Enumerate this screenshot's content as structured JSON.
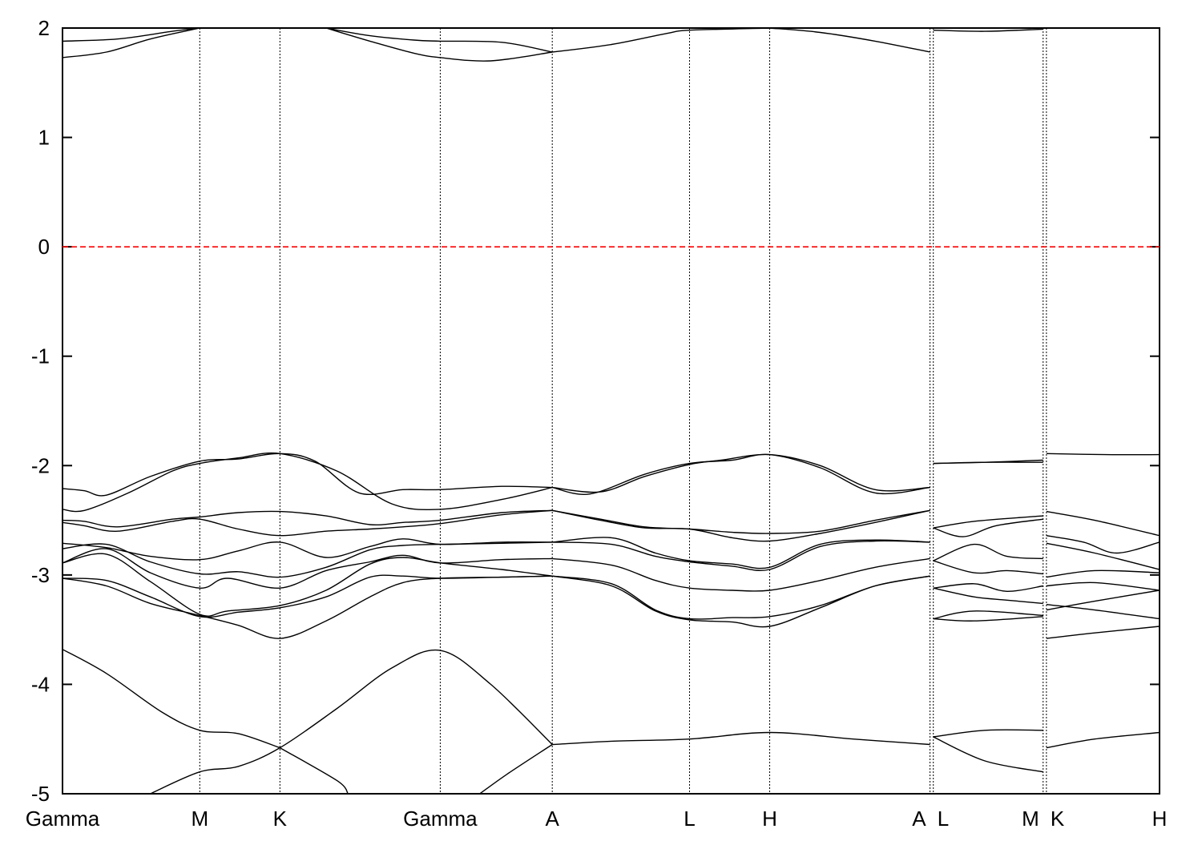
{
  "chart_data": {
    "type": "line",
    "title": "",
    "xlabel": "",
    "ylabel": "",
    "ylim": [
      -5,
      2
    ],
    "yticks": [
      2,
      1,
      0,
      -1,
      -2,
      -3,
      -4,
      -5
    ],
    "ytick_labels": [
      "2",
      "1",
      "0",
      "-1",
      "-2",
      "-3",
      "-4",
      "-5"
    ],
    "kpath": [
      {
        "label": "Gamma",
        "x": 0.0
      },
      {
        "label": "M",
        "x": 1.25
      },
      {
        "label": "K",
        "x": 1.98
      },
      {
        "label": "Gamma",
        "x": 3.44
      },
      {
        "label": "A",
        "x": 4.46
      },
      {
        "label": "L",
        "x": 5.71
      },
      {
        "label": "H",
        "x": 6.44
      },
      {
        "label": "A",
        "x": 7.9
      },
      {
        "label": "L",
        "x": 7.93
      },
      {
        "label": "M",
        "x": 8.93
      },
      {
        "label": "K",
        "x": 8.96
      },
      {
        "label": "H",
        "x": 9.99
      }
    ],
    "xlim": [
      0.0,
      9.99
    ],
    "fermi_level": {
      "y": 0,
      "color": "#ff0000"
    },
    "bands": [
      {
        "x": [
          0.0,
          0.5,
          1.0,
          1.25
        ],
        "y": [
          1.88,
          1.9,
          1.97,
          2.0
        ]
      },
      {
        "x": [
          0.0,
          0.4,
          0.8,
          1.25
        ],
        "y": [
          1.73,
          1.78,
          1.9,
          2.0
        ]
      },
      {
        "x": [
          2.4,
          2.8,
          3.2,
          3.44,
          4.0,
          4.46
        ],
        "y": [
          2.0,
          1.93,
          1.89,
          1.88,
          1.87,
          1.78
        ]
      },
      {
        "x": [
          2.4,
          2.8,
          3.2,
          3.44,
          3.9,
          4.46
        ],
        "y": [
          2.0,
          1.88,
          1.77,
          1.73,
          1.7,
          1.78
        ]
      },
      {
        "x": [
          4.46,
          5.0,
          5.5,
          5.71,
          6.44
        ],
        "y": [
          1.78,
          1.85,
          1.95,
          1.98,
          2.0
        ]
      },
      {
        "x": [
          6.44,
          6.9,
          7.4,
          7.9
        ],
        "y": [
          2.0,
          1.96,
          1.88,
          1.78
        ]
      },
      {
        "x": [
          7.93,
          8.4,
          8.93
        ],
        "y": [
          1.98,
          1.97,
          1.99
        ]
      },
      {
        "x": [
          0.0,
          0.2,
          0.4,
          0.8,
          1.25,
          1.6,
          1.98,
          2.3,
          2.7,
          3.1,
          3.44,
          4.0,
          4.46
        ],
        "y": [
          -2.21,
          -2.23,
          -2.27,
          -2.1,
          -1.96,
          -1.94,
          -1.89,
          -1.96,
          -2.25,
          -2.22,
          -2.22,
          -2.19,
          -2.2
        ]
      },
      {
        "x": [
          0.0,
          0.2,
          0.6,
          1.0,
          1.25,
          1.6,
          1.98,
          2.5,
          3.0,
          3.44,
          4.0,
          4.46
        ],
        "y": [
          -2.4,
          -2.41,
          -2.25,
          -2.05,
          -1.98,
          -1.93,
          -1.89,
          -2.05,
          -2.35,
          -2.4,
          -2.31,
          -2.2
        ]
      },
      {
        "x": [
          4.46,
          4.9,
          5.3,
          5.71,
          6.0,
          6.44,
          6.9,
          7.4,
          7.9
        ],
        "y": [
          -2.2,
          -2.24,
          -2.1,
          -1.99,
          -1.95,
          -1.9,
          -2.0,
          -2.22,
          -2.2
        ]
      },
      {
        "x": [
          4.46,
          4.8,
          5.3,
          5.71,
          6.1,
          6.44,
          6.9,
          7.4,
          7.9
        ],
        "y": [
          -2.2,
          -2.26,
          -2.08,
          -1.98,
          -1.95,
          -1.9,
          -2.02,
          -2.25,
          -2.2
        ]
      },
      {
        "x": [
          7.93,
          8.4,
          8.93
        ],
        "y": [
          -1.98,
          -1.97,
          -1.95
        ]
      },
      {
        "x": [
          7.93,
          8.4,
          8.93
        ],
        "y": [
          -1.98,
          -1.97,
          -1.97
        ]
      },
      {
        "x": [
          8.96,
          9.5,
          9.99
        ],
        "y": [
          -1.89,
          -1.9,
          -1.9
        ]
      },
      {
        "x": [
          0.0,
          0.2,
          0.5,
          1.0,
          1.25,
          1.6,
          1.98,
          2.4,
          2.8,
          3.1,
          3.44,
          4.0,
          4.46
        ],
        "y": [
          -2.5,
          -2.51,
          -2.56,
          -2.49,
          -2.47,
          -2.43,
          -2.42,
          -2.46,
          -2.54,
          -2.52,
          -2.5,
          -2.43,
          -2.41
        ]
      },
      {
        "x": [
          0.0,
          0.2,
          0.5,
          1.0,
          1.25,
          1.6,
          1.98,
          2.4,
          2.8,
          3.1,
          3.44,
          4.0,
          4.46
        ],
        "y": [
          -2.52,
          -2.55,
          -2.6,
          -2.51,
          -2.49,
          -2.58,
          -2.64,
          -2.6,
          -2.58,
          -2.56,
          -2.53,
          -2.45,
          -2.41
        ]
      },
      {
        "x": [
          4.46,
          4.9,
          5.3,
          5.71,
          6.1,
          6.44,
          6.9,
          7.4,
          7.9
        ],
        "y": [
          -2.41,
          -2.49,
          -2.56,
          -2.58,
          -2.61,
          -2.62,
          -2.6,
          -2.5,
          -2.41
        ]
      },
      {
        "x": [
          4.46,
          4.9,
          5.3,
          5.71,
          6.1,
          6.44,
          6.9,
          7.4,
          7.9
        ],
        "y": [
          -2.41,
          -2.5,
          -2.57,
          -2.58,
          -2.66,
          -2.69,
          -2.62,
          -2.52,
          -2.41
        ]
      },
      {
        "x": [
          7.93,
          8.3,
          8.93
        ],
        "y": [
          -2.57,
          -2.51,
          -2.46
        ]
      },
      {
        "x": [
          7.93,
          8.2,
          8.5,
          8.93
        ],
        "y": [
          -2.57,
          -2.65,
          -2.55,
          -2.49
        ]
      },
      {
        "x": [
          8.96,
          9.4,
          9.99
        ],
        "y": [
          -2.42,
          -2.5,
          -2.64
        ]
      },
      {
        "x": [
          8.96,
          9.3,
          9.6,
          9.99
        ],
        "y": [
          -2.64,
          -2.7,
          -2.8,
          -2.7
        ]
      },
      {
        "x": [
          0.0,
          0.4,
          0.8,
          1.25,
          1.6,
          1.98,
          2.4,
          2.8,
          3.1,
          3.44,
          4.0,
          4.46
        ],
        "y": [
          -2.71,
          -2.75,
          -2.83,
          -2.86,
          -2.78,
          -2.7,
          -2.84,
          -2.74,
          -2.67,
          -2.72,
          -2.7,
          -2.7
        ]
      },
      {
        "x": [
          0.0,
          0.4,
          0.8,
          1.25,
          1.6,
          1.98,
          2.4,
          2.8,
          3.1,
          3.44,
          4.0,
          4.46
        ],
        "y": [
          -2.76,
          -2.72,
          -2.88,
          -2.99,
          -2.97,
          -3.02,
          -2.93,
          -2.77,
          -2.73,
          -2.72,
          -2.71,
          -2.7
        ]
      },
      {
        "x": [
          4.46,
          5.0,
          5.4,
          5.71,
          6.1,
          6.44,
          6.9,
          7.4,
          7.9
        ],
        "y": [
          -2.7,
          -2.66,
          -2.8,
          -2.87,
          -2.9,
          -2.93,
          -2.72,
          -2.68,
          -2.7
        ]
      },
      {
        "x": [
          4.46,
          5.0,
          5.4,
          5.71,
          6.1,
          6.44,
          6.9,
          7.4,
          7.9
        ],
        "y": [
          -2.7,
          -2.72,
          -2.83,
          -2.88,
          -2.92,
          -2.95,
          -2.74,
          -2.69,
          -2.7
        ]
      },
      {
        "x": [
          7.93,
          8.3,
          8.6,
          8.93
        ],
        "y": [
          -2.87,
          -2.72,
          -2.83,
          -2.85
        ]
      },
      {
        "x": [
          7.93,
          8.3,
          8.6,
          8.93
        ],
        "y": [
          -2.87,
          -2.98,
          -2.96,
          -2.99
        ]
      },
      {
        "x": [
          8.96,
          9.4,
          9.99
        ],
        "y": [
          -2.71,
          -2.8,
          -2.95
        ]
      },
      {
        "x": [
          8.96,
          9.4,
          9.99
        ],
        "y": [
          -3.02,
          -2.96,
          -2.98
        ]
      },
      {
        "x": [
          0.0,
          0.4,
          0.8,
          1.25,
          1.5,
          1.98,
          2.4,
          2.8,
          3.1,
          3.44,
          4.0,
          4.46
        ],
        "y": [
          -2.89,
          -2.76,
          -2.98,
          -3.12,
          -3.03,
          -3.12,
          -2.96,
          -2.88,
          -2.82,
          -2.89,
          -2.86,
          -2.85
        ]
      },
      {
        "x": [
          0.0,
          0.4,
          0.8,
          1.25,
          1.5,
          1.98,
          2.4,
          2.8,
          3.1,
          3.44,
          4.0,
          4.46
        ],
        "y": [
          -2.89,
          -2.81,
          -3.06,
          -3.36,
          -3.33,
          -3.28,
          -3.14,
          -2.9,
          -2.84,
          -2.89,
          -2.95,
          -3.01
        ]
      },
      {
        "x": [
          4.46,
          5.0,
          5.4,
          5.71,
          6.1,
          6.44,
          6.9,
          7.4,
          7.9
        ],
        "y": [
          -2.85,
          -2.91,
          -3.05,
          -3.12,
          -3.14,
          -3.14,
          -3.05,
          -2.93,
          -2.85
        ]
      },
      {
        "x": [
          4.46,
          5.0,
          5.4,
          5.71,
          6.1,
          6.44,
          6.9,
          7.4,
          7.9
        ],
        "y": [
          -3.01,
          -3.08,
          -3.32,
          -3.4,
          -3.39,
          -3.38,
          -3.28,
          -3.1,
          -3.01
        ]
      },
      {
        "x": [
          7.93,
          8.3,
          8.6,
          8.93
        ],
        "y": [
          -3.12,
          -3.08,
          -3.15,
          -3.1
        ]
      },
      {
        "x": [
          7.93,
          8.3,
          8.6,
          8.93
        ],
        "y": [
          -3.12,
          -3.2,
          -3.23,
          -3.26
        ]
      },
      {
        "x": [
          8.96,
          9.4,
          9.99
        ],
        "y": [
          -3.1,
          -3.07,
          -3.14
        ]
      },
      {
        "x": [
          8.96,
          9.4,
          9.99
        ],
        "y": [
          -3.27,
          -3.32,
          -3.4
        ]
      },
      {
        "x": [
          0.0,
          0.4,
          0.8,
          1.25,
          1.6,
          1.98,
          2.4,
          2.8,
          3.1,
          3.44,
          4.0,
          4.46
        ],
        "y": [
          -3.03,
          -3.05,
          -3.2,
          -3.38,
          -3.34,
          -3.3,
          -3.2,
          -3.02,
          -3.01,
          -3.03,
          -3.02,
          -3.01
        ]
      },
      {
        "x": [
          0.0,
          0.4,
          0.8,
          1.25,
          1.6,
          1.98,
          2.4,
          2.8,
          3.1,
          3.44,
          4.0,
          4.46
        ],
        "y": [
          -3.03,
          -3.1,
          -3.26,
          -3.37,
          -3.46,
          -3.58,
          -3.42,
          -3.2,
          -3.07,
          -3.03,
          -3.02,
          -3.01
        ]
      },
      {
        "x": [
          4.46,
          5.0,
          5.4,
          5.71,
          6.1,
          6.44,
          6.9,
          7.4,
          7.9
        ],
        "y": [
          -3.01,
          -3.1,
          -3.33,
          -3.41,
          -3.43,
          -3.47,
          -3.3,
          -3.1,
          -3.01
        ]
      },
      {
        "x": [
          7.93,
          8.3,
          8.93
        ],
        "y": [
          -3.4,
          -3.33,
          -3.37
        ]
      },
      {
        "x": [
          7.93,
          8.3,
          8.93
        ],
        "y": [
          -3.4,
          -3.42,
          -3.38
        ]
      },
      {
        "x": [
          8.96,
          9.4,
          9.99
        ],
        "y": [
          -3.32,
          -3.24,
          -3.14
        ]
      },
      {
        "x": [
          8.96,
          9.4,
          9.99
        ],
        "y": [
          -3.58,
          -3.53,
          -3.47
        ]
      },
      {
        "x": [
          0.0,
          0.4,
          0.9,
          1.25,
          1.6,
          1.98
        ],
        "y": [
          -3.68,
          -3.9,
          -4.25,
          -4.42,
          -4.45,
          -4.58
        ]
      },
      {
        "x": [
          0.8,
          1.25,
          1.6,
          1.98,
          2.5,
          3.0,
          3.44,
          3.9,
          4.46
        ],
        "y": [
          -5.0,
          -4.8,
          -4.75,
          -4.58,
          -4.22,
          -3.85,
          -3.69,
          -4.0,
          -4.55
        ]
      },
      {
        "x": [
          1.98,
          2.5,
          2.6
        ],
        "y": [
          -4.58,
          -4.88,
          -5.0
        ]
      },
      {
        "x": [
          4.46,
          4.05,
          3.8
        ],
        "y": [
          -4.55,
          -4.82,
          -5.0
        ]
      },
      {
        "x": [
          4.46,
          5.0,
          5.71,
          6.44,
          7.2,
          7.9
        ],
        "y": [
          -4.55,
          -4.52,
          -4.5,
          -4.44,
          -4.5,
          -4.55
        ]
      },
      {
        "x": [
          7.93,
          8.4,
          8.93
        ],
        "y": [
          -4.48,
          -4.42,
          -4.42
        ]
      },
      {
        "x": [
          7.93,
          8.4,
          8.93
        ],
        "y": [
          -4.48,
          -4.7,
          -4.8
        ]
      },
      {
        "x": [
          8.96,
          9.4,
          9.99
        ],
        "y": [
          -4.58,
          -4.5,
          -4.44
        ]
      }
    ]
  }
}
